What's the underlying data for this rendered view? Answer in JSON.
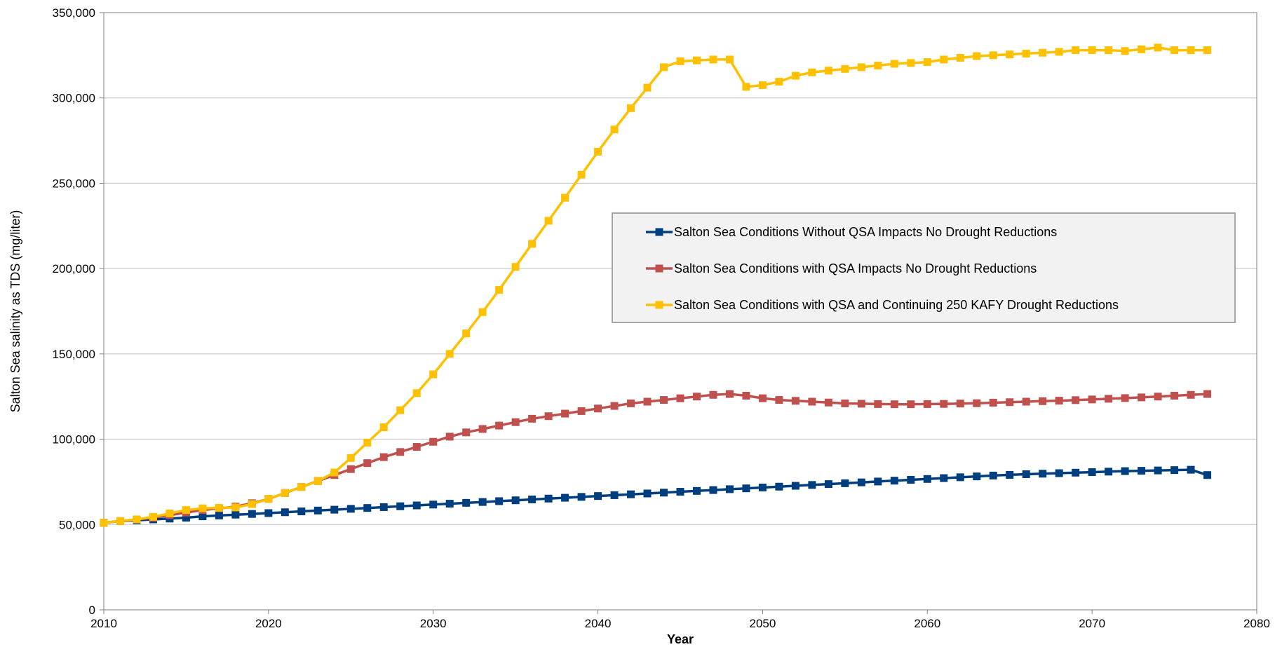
{
  "chart_data": {
    "type": "line",
    "title": "",
    "xlabel": "Year",
    "ylabel": "Salton Sea salinity as TDS (mg/liter)",
    "xlim": [
      2010,
      2080
    ],
    "ylim": [
      0,
      350000
    ],
    "x_ticks": [
      2010,
      2020,
      2030,
      2040,
      2050,
      2060,
      2070,
      2080
    ],
    "y_ticks": [
      0,
      50000,
      100000,
      150000,
      200000,
      250000,
      300000,
      350000
    ],
    "y_tick_labels": [
      "0",
      "50,000",
      "100,000",
      "150,000",
      "200,000",
      "250,000",
      "300,000",
      "350,000"
    ],
    "x_tick_labels": [
      "2010",
      "2020",
      "2030",
      "2040",
      "2050",
      "2060",
      "2070",
      "2080"
    ],
    "grid": "horizontal",
    "legend_position": "center-right",
    "x": [
      2010,
      2011,
      2012,
      2013,
      2014,
      2015,
      2016,
      2017,
      2018,
      2019,
      2020,
      2021,
      2022,
      2023,
      2024,
      2025,
      2026,
      2027,
      2028,
      2029,
      2030,
      2031,
      2032,
      2033,
      2034,
      2035,
      2036,
      2037,
      2038,
      2039,
      2040,
      2041,
      2042,
      2043,
      2044,
      2045,
      2046,
      2047,
      2048,
      2049,
      2050,
      2051,
      2052,
      2053,
      2054,
      2055,
      2056,
      2057,
      2058,
      2059,
      2060,
      2061,
      2062,
      2063,
      2064,
      2065,
      2066,
      2067,
      2068,
      2069,
      2070,
      2071,
      2072,
      2073,
      2074,
      2075,
      2076,
      2077
    ],
    "series": [
      {
        "name": "Salton Sea Conditions Without QSA Impacts No Drought Reductions",
        "color": "#003f7f",
        "values": [
          51000,
          52000,
          52500,
          53000,
          53500,
          54000,
          54800,
          55300,
          55800,
          56200,
          56700,
          57200,
          57700,
          58200,
          58700,
          59200,
          59700,
          60200,
          60700,
          61200,
          61700,
          62200,
          62700,
          63200,
          63700,
          64200,
          64700,
          65200,
          65700,
          66200,
          66700,
          67200,
          67700,
          68200,
          68700,
          69200,
          69700,
          70200,
          70700,
          71200,
          71700,
          72200,
          72700,
          73200,
          73700,
          74200,
          74700,
          75200,
          75700,
          76200,
          76700,
          77200,
          77700,
          78200,
          78700,
          79100,
          79500,
          79800,
          80100,
          80400,
          80700,
          81000,
          81300,
          81500,
          81700,
          81900,
          82100,
          79000
        ]
      },
      {
        "name": "Salton Sea Conditions with QSA Impacts No Drought Reductions",
        "color": "#c0504d",
        "values": [
          51000,
          52000,
          53000,
          54000,
          55500,
          57000,
          58500,
          59500,
          60500,
          62500,
          65000,
          68500,
          72000,
          75500,
          79000,
          82500,
          86000,
          89500,
          92500,
          95500,
          98500,
          101500,
          104000,
          106000,
          108000,
          110000,
          112000,
          113500,
          115000,
          116500,
          118000,
          119500,
          121000,
          122000,
          123000,
          124000,
          125000,
          126000,
          126500,
          125500,
          124000,
          123000,
          122500,
          122000,
          121500,
          121000,
          120800,
          120600,
          120500,
          120500,
          120600,
          120700,
          120900,
          121100,
          121400,
          121700,
          122000,
          122300,
          122600,
          122900,
          123300,
          123700,
          124100,
          124500,
          125000,
          125500,
          126000,
          126500
        ]
      },
      {
        "name": "Salton Sea Conditions with QSA and Continuing 250 KAFY Drought Reductions",
        "color": "#ffc000",
        "values": [
          51000,
          52000,
          53000,
          54500,
          56500,
          58500,
          59500,
          59800,
          60000,
          62000,
          65000,
          68500,
          72000,
          75500,
          80500,
          89000,
          98000,
          107000,
          117000,
          127000,
          138000,
          150000,
          162000,
          174500,
          187500,
          201000,
          214500,
          228000,
          241500,
          255000,
          268500,
          281500,
          294000,
          306000,
          318000,
          321500,
          322000,
          322500,
          322500,
          306500,
          307500,
          309500,
          313000,
          315000,
          316000,
          317000,
          318000,
          319000,
          320000,
          320500,
          321000,
          322500,
          323500,
          324500,
          325000,
          325500,
          326000,
          326500,
          327000,
          328000,
          328000,
          328000,
          327500,
          328500,
          329500,
          328000,
          328000,
          328000
        ]
      }
    ]
  }
}
